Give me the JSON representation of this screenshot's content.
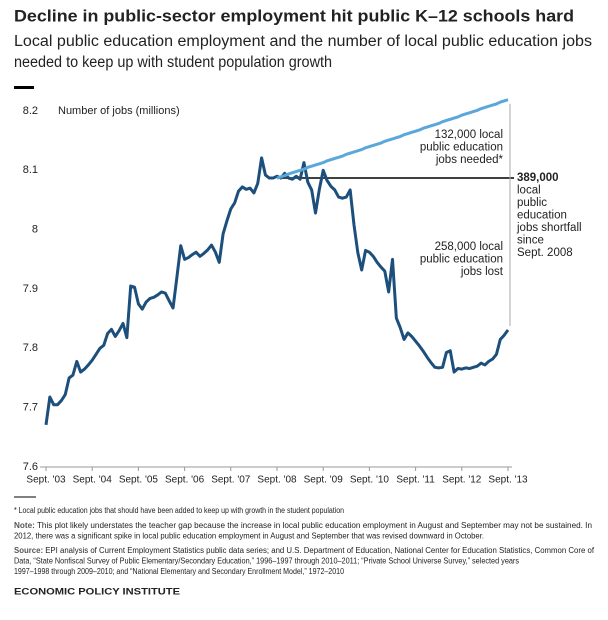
{
  "chart_data": {
    "type": "line",
    "title": "Decline in public-sector employment hit public K–12 schools hard",
    "subtitle": [
      "Local public education employment and the number of local public education jobs",
      "needed to keep up with student population growth"
    ],
    "y_axis_label": "Number of jobs (millions)",
    "categories": [
      "Sept. '03",
      null,
      null,
      null,
      null,
      null,
      null,
      null,
      null,
      null,
      null,
      null,
      "Sept. '04",
      null,
      null,
      null,
      null,
      null,
      null,
      null,
      null,
      null,
      null,
      null,
      "Sept. '05",
      null,
      null,
      null,
      null,
      null,
      null,
      null,
      null,
      null,
      null,
      null,
      "Sept. '06",
      null,
      null,
      null,
      null,
      null,
      null,
      null,
      null,
      null,
      null,
      null,
      "Sept. '07",
      null,
      null,
      null,
      null,
      null,
      null,
      null,
      null,
      null,
      null,
      null,
      "Sept. '08",
      null,
      null,
      null,
      null,
      null,
      null,
      null,
      null,
      null,
      null,
      null,
      "Sept. '09",
      null,
      null,
      null,
      null,
      null,
      null,
      null,
      null,
      null,
      null,
      null,
      "Sept. '10",
      null,
      null,
      null,
      null,
      null,
      null,
      null,
      null,
      null,
      null,
      null,
      "Sept. '11",
      null,
      null,
      null,
      null,
      null,
      null,
      null,
      null,
      null,
      null,
      null,
      "Sept. '12",
      null,
      null,
      null,
      null,
      null,
      null,
      null,
      null,
      null,
      null,
      null,
      "Sept. '13"
    ],
    "series": [
      {
        "name": "Local public education employment",
        "color": "#1d4f7c",
        "values": [
          7.671,
          7.718,
          7.705,
          7.705,
          7.712,
          7.722,
          7.75,
          7.755,
          7.778,
          7.76,
          7.765,
          7.772,
          7.78,
          7.79,
          7.8,
          7.805,
          7.825,
          7.832,
          7.82,
          7.83,
          7.842,
          7.818,
          7.905,
          7.903,
          7.875,
          7.866,
          7.878,
          7.884,
          7.886,
          7.89,
          7.895,
          7.893,
          7.88,
          7.868,
          7.92,
          7.973,
          7.95,
          7.953,
          7.958,
          7.962,
          7.955,
          7.96,
          7.966,
          7.974,
          7.962,
          7.945,
          7.993,
          8.015,
          8.035,
          8.045,
          8.065,
          8.072,
          8.068,
          8.07,
          8.062,
          8.078,
          8.121,
          8.092,
          8.087,
          8.087,
          8.09,
          8.087,
          8.095,
          8.087,
          8.085,
          8.09,
          8.085,
          8.113,
          8.08,
          8.067,
          8.028,
          8.068,
          8.1,
          8.083,
          8.073,
          8.067,
          8.055,
          8.053,
          8.055,
          8.067,
          8.008,
          7.961,
          7.932,
          7.965,
          7.962,
          7.955,
          7.945,
          7.937,
          7.93,
          7.895,
          7.95,
          7.851,
          7.835,
          7.815,
          7.826,
          7.82,
          7.812,
          7.804,
          7.795,
          7.785,
          7.776,
          7.768,
          7.767,
          7.768,
          7.793,
          7.796,
          7.76,
          7.766,
          7.765,
          7.767,
          7.766,
          7.768,
          7.77,
          7.775,
          7.772,
          7.778,
          7.782,
          7.79,
          7.815,
          7.822,
          7.831
        ]
      },
      {
        "name": "Jobs needed to keep up with student population growth",
        "color": "#5aa7dc",
        "values": [
          null,
          null,
          null,
          null,
          null,
          null,
          null,
          null,
          null,
          null,
          null,
          null,
          null,
          null,
          null,
          null,
          null,
          null,
          null,
          null,
          null,
          null,
          null,
          null,
          null,
          null,
          null,
          null,
          null,
          null,
          null,
          null,
          null,
          null,
          null,
          null,
          null,
          null,
          null,
          null,
          null,
          null,
          null,
          null,
          null,
          null,
          null,
          null,
          null,
          null,
          null,
          null,
          null,
          null,
          null,
          null,
          null,
          null,
          null,
          null,
          8.087,
          8.089,
          8.091,
          8.094,
          8.096,
          8.098,
          8.1,
          8.102,
          8.105,
          8.107,
          8.109,
          8.111,
          8.113,
          8.116,
          8.118,
          8.12,
          8.122,
          8.124,
          8.127,
          8.129,
          8.131,
          8.133,
          8.135,
          8.138,
          8.14,
          8.142,
          8.144,
          8.146,
          8.149,
          8.151,
          8.153,
          8.155,
          8.157,
          8.16,
          8.162,
          8.164,
          8.166,
          8.168,
          8.171,
          8.173,
          8.175,
          8.177,
          8.179,
          8.182,
          8.184,
          8.186,
          8.188,
          8.19,
          8.193,
          8.195,
          8.197,
          8.199,
          8.201,
          8.204,
          8.206,
          8.208,
          8.21,
          8.212,
          8.215,
          8.217,
          8.219
        ]
      }
    ],
    "ylim": [
      7.6,
      8.2
    ],
    "yticks": [
      7.6,
      7.7,
      7.8,
      7.9,
      8.0,
      8.1,
      8.2
    ],
    "grid": false,
    "annotations": [
      {
        "lines": [
          "132,000 local",
          "public education",
          "jobs needed*"
        ],
        "color": "#5aa7dc"
      },
      {
        "lines": [
          "389,000",
          "local",
          "public",
          "education",
          "jobs shortfall",
          "since",
          "Sept. 2008"
        ],
        "color": "#000000"
      },
      {
        "lines": [
          "258,000 local",
          "public education",
          "jobs lost"
        ],
        "color": "#1d4f7c"
      }
    ],
    "footnote": "* Local public education jobs that should have been added to keep up with growth in the student population",
    "note_label": "Note:",
    "note": [
      " This plot likely understates the teacher gap because the increase in local public education employment in August and September may not be sustained. In",
      "2012, there was a significant spike in local public education employment in August and September that was revised downward in October."
    ],
    "source_label": "Source:",
    "source": [
      " EPI analysis of Current Employment Statistics public data series; and U.S. Department of Education, National Center for Education Statistics, Common Core of",
      "Data, “State Nonfiscal Survey of Public Elementary/Secondary Education,” 1996–1997 through 2010–2011; “Private School Universe Survey,” selected years",
      "1997–1998 through 2009–2010; and “National Elementary and Secondary Enrollment Model,” 1972–2010"
    ],
    "publisher": "ECONOMIC POLICY INSTITUTE"
  }
}
